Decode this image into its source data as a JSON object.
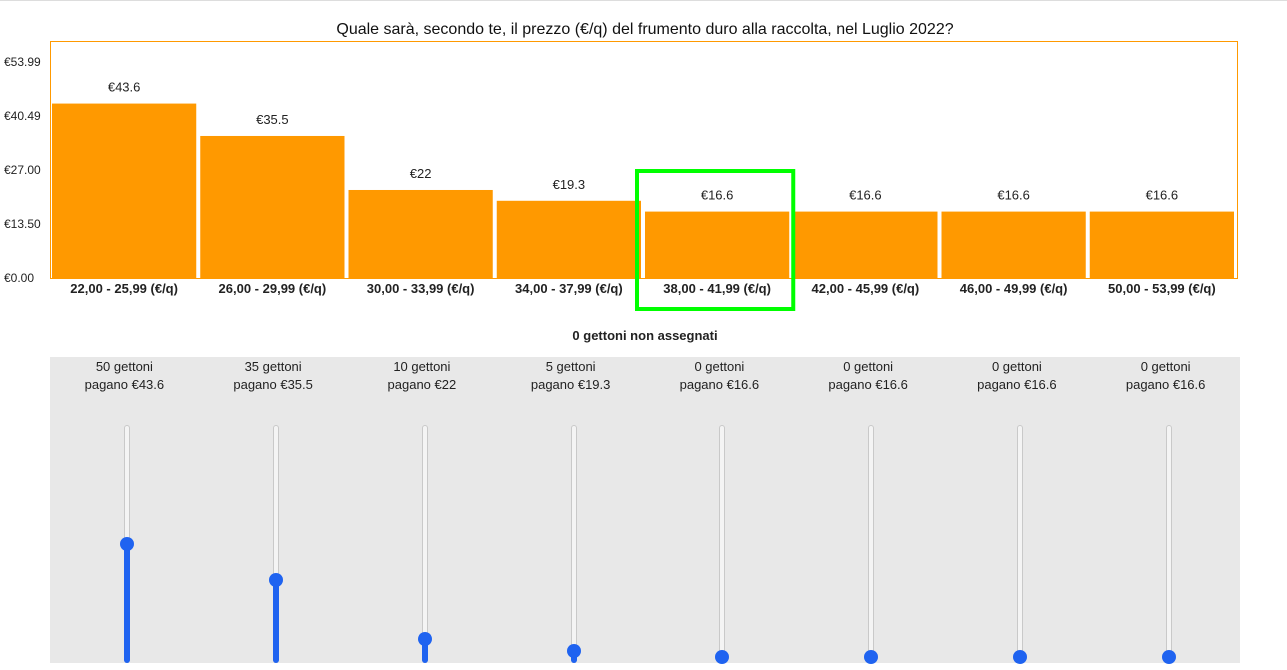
{
  "question": "Quale sarà, secondo te, il prezzo (€/q) del frumento duro alla raccolta, nel Luglio 2022?",
  "unassigned_text": "0 gettoni non assegnati",
  "colors": {
    "bar": "#ff9900",
    "highlight": "#00ff00",
    "slider": "#1f63f0",
    "panel": "#e8e8e8"
  },
  "chart_data": {
    "type": "bar",
    "title": "Quale sarà, secondo te, il prezzo (€/q) del frumento duro alla raccolta, nel Luglio 2022?",
    "xlabel": "",
    "ylabel": "",
    "ylim": [
      0,
      53.99
    ],
    "yticks": [
      0,
      13.5,
      27.0,
      40.49,
      53.99
    ],
    "ytick_labels": [
      "€0.00",
      "€13.50",
      "€27.00",
      "€40.49",
      "€53.99"
    ],
    "categories": [
      "22,00 - 25,99 (€/q)",
      "26,00 - 29,99 (€/q)",
      "30,00 - 33,99 (€/q)",
      "34,00 - 37,99 (€/q)",
      "38,00 - 41,99 (€/q)",
      "42,00 - 45,99 (€/q)",
      "46,00 - 49,99 (€/q)",
      "50,00 - 53,99 (€/q)"
    ],
    "values": [
      43.6,
      35.5,
      22,
      19.3,
      16.6,
      16.6,
      16.6,
      16.6
    ],
    "value_labels": [
      "€43.6",
      "€35.5",
      "€22",
      "€19.3",
      "€16.6",
      "€16.6",
      "€16.6",
      "€16.6"
    ],
    "highlighted_index": 4,
    "grid": false
  },
  "sliders": [
    {
      "line1": "50 gettoni",
      "line2": "pagano €43.6",
      "tokens": 50
    },
    {
      "line1": "35 gettoni",
      "line2": "pagano €35.5",
      "tokens": 35
    },
    {
      "line1": "10 gettoni",
      "line2": "pagano €22",
      "tokens": 10
    },
    {
      "line1": "5 gettoni",
      "line2": "pagano €19.3",
      "tokens": 5
    },
    {
      "line1": "0 gettoni",
      "line2": "pagano €16.6",
      "tokens": 0
    },
    {
      "line1": "0 gettoni",
      "line2": "pagano €16.6",
      "tokens": 0
    },
    {
      "line1": "0 gettoni",
      "line2": "pagano €16.6",
      "tokens": 0
    },
    {
      "line1": "0 gettoni",
      "line2": "pagano €16.6",
      "tokens": 0
    }
  ],
  "slider_max_tokens": 100
}
